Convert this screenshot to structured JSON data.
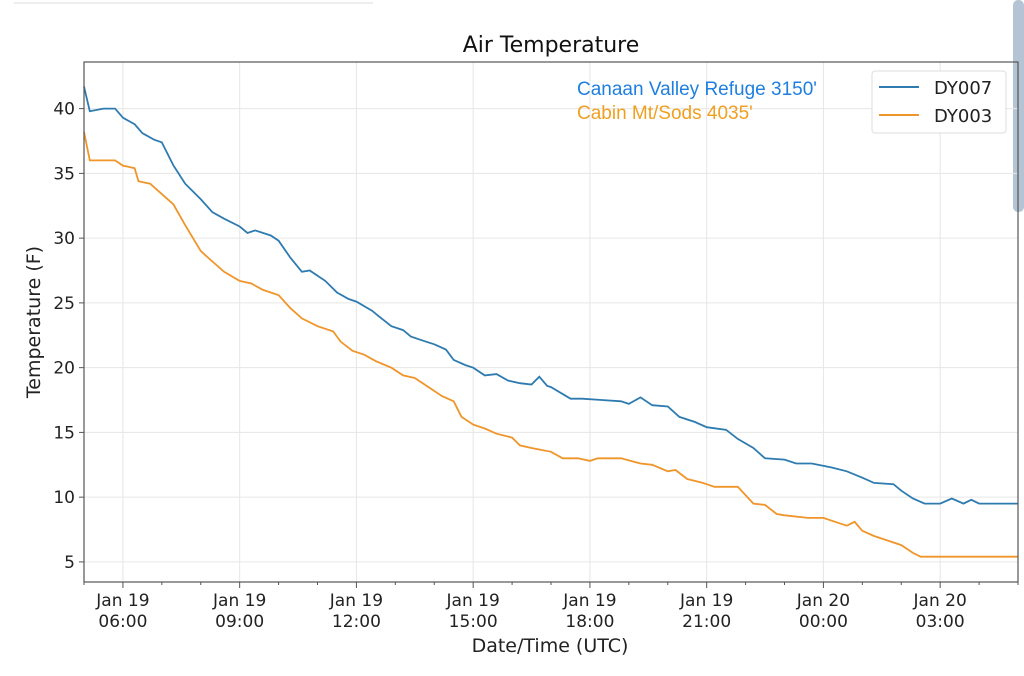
{
  "chart_data": {
    "type": "line",
    "title": "Air Temperature",
    "xlabel": "Date/Time (UTC)",
    "ylabel": "Temperature (F)",
    "x_units": "hours since Jan 19 05:00 UTC",
    "xlim": [
      0,
      24
    ],
    "ylim": [
      3.45,
      43.6
    ],
    "grid": true,
    "legend_placement": "top-right",
    "yticks": [
      5,
      10,
      15,
      20,
      25,
      30,
      35,
      40
    ],
    "xticks": [
      {
        "h": 1,
        "date": "Jan 19",
        "time": "06:00"
      },
      {
        "h": 4,
        "date": "Jan 19",
        "time": "09:00"
      },
      {
        "h": 7,
        "date": "Jan 19",
        "time": "12:00"
      },
      {
        "h": 10,
        "date": "Jan 19",
        "time": "15:00"
      },
      {
        "h": 13,
        "date": "Jan 19",
        "time": "18:00"
      },
      {
        "h": 16,
        "date": "Jan 19",
        "time": "21:00"
      },
      {
        "h": 19,
        "date": "Jan 20",
        "time": "00:00"
      },
      {
        "h": 22,
        "date": "Jan 20",
        "time": "03:00"
      }
    ],
    "annotations": [
      {
        "text": "Canaan Valley Refuge 3150'",
        "color": "#1f7fe0"
      },
      {
        "text": "Cabin Mt/Sods 4035'",
        "color": "#f0a020"
      }
    ],
    "series": [
      {
        "name": "DY007",
        "color": "#2e7bb0",
        "x": [
          0,
          0.15,
          0.5,
          0.8,
          1.0,
          1.3,
          1.5,
          1.8,
          2.0,
          2.3,
          2.6,
          3.0,
          3.3,
          3.6,
          4.0,
          4.2,
          4.4,
          4.8,
          5.0,
          5.3,
          5.6,
          5.8,
          6.2,
          6.5,
          6.8,
          7.0,
          7.4,
          7.6,
          7.9,
          8.2,
          8.4,
          8.8,
          9.0,
          9.3,
          9.5,
          9.8,
          10.0,
          10.3,
          10.6,
          10.9,
          11.2,
          11.5,
          11.7,
          11.9,
          12.0,
          12.5,
          12.8,
          13.3,
          13.8,
          14.0,
          14.3,
          14.6,
          15.0,
          15.3,
          15.7,
          16.0,
          16.5,
          16.8,
          17.2,
          17.5,
          18.0,
          18.3,
          18.7,
          19.2,
          19.6,
          20.0,
          20.3,
          20.8,
          21.0,
          21.3,
          21.6,
          22.0,
          22.3,
          22.6,
          22.8,
          23.0,
          24.0
        ],
        "y": [
          41.7,
          39.8,
          40.0,
          40.0,
          39.3,
          38.8,
          38.1,
          37.6,
          37.4,
          35.6,
          34.2,
          33.0,
          32.0,
          31.5,
          30.9,
          30.4,
          30.6,
          30.2,
          29.8,
          28.5,
          27.4,
          27.5,
          26.7,
          25.8,
          25.3,
          25.1,
          24.4,
          23.9,
          23.2,
          22.9,
          22.4,
          22.0,
          21.8,
          21.4,
          20.6,
          20.2,
          20.0,
          19.4,
          19.5,
          19.0,
          18.8,
          18.7,
          19.3,
          18.6,
          18.5,
          17.6,
          17.6,
          17.5,
          17.4,
          17.2,
          17.7,
          17.1,
          17.0,
          16.2,
          15.8,
          15.4,
          15.2,
          14.5,
          13.8,
          13.0,
          12.9,
          12.6,
          12.6,
          12.3,
          12.0,
          11.5,
          11.1,
          11.0,
          10.5,
          9.9,
          9.5,
          9.5,
          9.9,
          9.5,
          9.8,
          9.5,
          9.5
        ]
      },
      {
        "name": "DY003",
        "color": "#f0952a",
        "x": [
          0,
          0.15,
          0.8,
          1.0,
          1.3,
          1.4,
          1.7,
          2.0,
          2.3,
          2.6,
          3.0,
          3.3,
          3.6,
          4.0,
          4.3,
          4.6,
          5.0,
          5.3,
          5.6,
          6.0,
          6.4,
          6.6,
          6.9,
          7.2,
          7.5,
          7.9,
          8.2,
          8.5,
          8.9,
          9.2,
          9.5,
          9.7,
          10.0,
          10.3,
          10.6,
          11.0,
          11.2,
          11.5,
          12.0,
          12.3,
          12.7,
          13.0,
          13.2,
          13.8,
          14.3,
          14.6,
          15.0,
          15.2,
          15.5,
          15.9,
          16.2,
          16.8,
          17.2,
          17.5,
          17.8,
          18.0,
          18.6,
          19.0,
          19.3,
          19.6,
          19.8,
          20.0,
          20.3,
          20.6,
          21.0,
          21.3,
          21.5,
          24.0
        ],
        "y": [
          38.2,
          36.0,
          36.0,
          35.6,
          35.4,
          34.4,
          34.2,
          33.4,
          32.6,
          31.0,
          29.0,
          28.2,
          27.4,
          26.7,
          26.5,
          26.0,
          25.6,
          24.6,
          23.8,
          23.2,
          22.8,
          22.0,
          21.3,
          21.0,
          20.5,
          20.0,
          19.4,
          19.2,
          18.4,
          17.8,
          17.4,
          16.2,
          15.6,
          15.3,
          14.9,
          14.6,
          14.0,
          13.8,
          13.5,
          13.0,
          13.0,
          12.8,
          13.0,
          13.0,
          12.6,
          12.5,
          12.0,
          12.1,
          11.4,
          11.1,
          10.8,
          10.8,
          9.5,
          9.4,
          8.7,
          8.6,
          8.4,
          8.4,
          8.1,
          7.8,
          8.1,
          7.4,
          7.0,
          6.7,
          6.3,
          5.7,
          5.4,
          5.4
        ]
      }
    ]
  }
}
